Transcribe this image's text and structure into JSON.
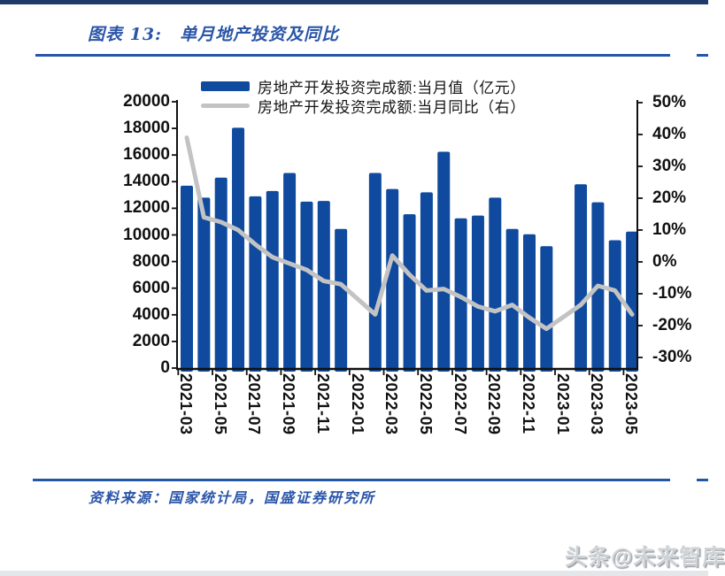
{
  "header": {
    "label": "图表 13:",
    "title": "单月地产投资及同比",
    "accent_color": "#2456a8"
  },
  "legend": {
    "position": "top-center",
    "items": [
      {
        "label": "房地产开发投资完成额:当月值（亿元）",
        "swatch": "bar",
        "color": "#0f4a9f"
      },
      {
        "label": "房地产开发投资完成额:当月同比（右）",
        "swatch": "line",
        "color": "#c3c3c3"
      }
    ]
  },
  "chart_data": {
    "type": "bar+line",
    "title": "单月地产投资及同比",
    "grid": false,
    "categories": [
      "2021-03",
      "2021-04",
      "2021-05",
      "2021-06",
      "2021-07",
      "2021-08",
      "2021-09",
      "2021-10",
      "2021-11",
      "2021-12",
      "2022-01",
      "2022-02",
      "2022-03",
      "2022-04",
      "2022-05",
      "2022-06",
      "2022-07",
      "2022-08",
      "2022-09",
      "2022-10",
      "2022-11",
      "2022-12",
      "2023-01",
      "2023-02",
      "2023-03",
      "2023-04",
      "2023-05"
    ],
    "series": [
      {
        "name": "房地产开发投资完成额:当月值（亿元）",
        "type": "bar",
        "axis": "left",
        "color": "#0f4a9f",
        "values": [
          13700,
          12800,
          14300,
          18050,
          12900,
          13300,
          14650,
          12500,
          12550,
          10450,
          null,
          14650,
          13450,
          11550,
          13200,
          16250,
          11250,
          11450,
          12800,
          10450,
          10050,
          9150,
          null,
          13800,
          12450,
          9600,
          10250
        ]
      },
      {
        "name": "房地产开发投资完成额:当月同比（右）",
        "type": "line",
        "axis": "right",
        "color": "#c3c3c3",
        "values": [
          39,
          14,
          12.5,
          10,
          5.5,
          1.5,
          -0.5,
          -2.5,
          -6,
          -7,
          null,
          -16.5,
          2,
          -4,
          -9,
          -8.5,
          -11,
          -14,
          -15.5,
          -13.5,
          -17.5,
          -21,
          null,
          -13.5,
          -7.5,
          -9,
          -16.5
        ]
      }
    ],
    "left_axis": {
      "min": 0,
      "max": 20000,
      "step": 2000,
      "tick_labels": [
        "0",
        "2000",
        "4000",
        "6000",
        "8000",
        "10000",
        "12000",
        "14000",
        "16000",
        "18000",
        "20000"
      ]
    },
    "right_axis": {
      "min": -30,
      "max": 50,
      "step": 10,
      "unit": "%",
      "tick_labels": [
        "50%",
        "40%",
        "30%",
        "20%",
        "10%",
        "0%",
        "-10%",
        "-20%",
        "-30%"
      ],
      "tick_values": [
        50,
        40,
        30,
        20,
        10,
        0,
        -10,
        -20,
        -30
      ]
    },
    "x_tick_labels": [
      "2021-03",
      "2021-05",
      "2021-07",
      "2021-09",
      "2021-11",
      "2022-01",
      "2022-03",
      "2022-05",
      "2022-07",
      "2022-09",
      "2022-11",
      "2023-01",
      "2023-03",
      "2023-05"
    ]
  },
  "footer": {
    "source": "资料来源：国家统计局，国盛证券研究所"
  },
  "watermark": {
    "text": "头条@未来智库"
  }
}
